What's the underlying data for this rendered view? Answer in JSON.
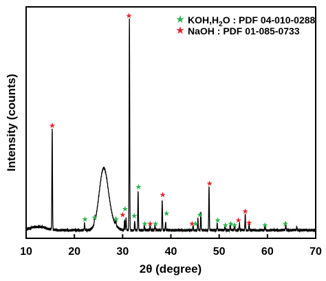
{
  "chart_data": {
    "type": "line",
    "xlabel": "2θ (degree)",
    "ylabel": "Intensity (counts)",
    "xlim": [
      10,
      70
    ],
    "ylim": [
      0,
      100
    ],
    "x_ticks": [
      "10",
      "20",
      "30",
      "40",
      "50",
      "60",
      "70"
    ],
    "y_ticks": [],
    "grid": false,
    "legend_position": "top-right",
    "legend": [
      {
        "marker_color": "#2bb24c",
        "label_parts": [
          "KOH,H",
          "2",
          "O : PDF 04-010-0288"
        ]
      },
      {
        "marker_color": "#e8202a",
        "label": "NaOH : PDF 01-085-0733"
      }
    ],
    "pattern": {
      "color": "#000000",
      "baseline": 3.5,
      "humps": [
        {
          "center": 12.5,
          "width": 1.6,
          "height": 1.5
        },
        {
          "center": 26.0,
          "width": 0.9,
          "height": 22.0
        },
        {
          "center": 26.8,
          "width": 1.2,
          "height": 6.0
        }
      ],
      "peaks": [
        {
          "x": 15.4,
          "intensity": 44.0
        },
        {
          "x": 22.1,
          "intensity": 3.0
        },
        {
          "x": 24.2,
          "intensity": 2.5
        },
        {
          "x": 28.6,
          "intensity": 3.0
        },
        {
          "x": 30.4,
          "intensity": 4.5
        },
        {
          "x": 30.7,
          "intensity": 5.0
        },
        {
          "x": 31.4,
          "intensity": 91.0
        },
        {
          "x": 32.5,
          "intensity": 4.0
        },
        {
          "x": 33.2,
          "intensity": 17.0
        },
        {
          "x": 34.5,
          "intensity": 2.0
        },
        {
          "x": 35.7,
          "intensity": 2.0
        },
        {
          "x": 36.7,
          "intensity": 2.5
        },
        {
          "x": 38.2,
          "intensity": 13.0
        },
        {
          "x": 38.9,
          "intensity": 3.5
        },
        {
          "x": 44.6,
          "intensity": 2.0
        },
        {
          "x": 45.6,
          "intensity": 5.0
        },
        {
          "x": 46.2,
          "intensity": 8.0
        },
        {
          "x": 47.9,
          "intensity": 19.0
        },
        {
          "x": 49.6,
          "intensity": 3.0
        },
        {
          "x": 51.2,
          "intensity": 2.0
        },
        {
          "x": 52.3,
          "intensity": 2.5
        },
        {
          "x": 53.2,
          "intensity": 2.5
        },
        {
          "x": 54.2,
          "intensity": 3.0
        },
        {
          "x": 55.4,
          "intensity": 7.0
        },
        {
          "x": 56.2,
          "intensity": 3.0
        },
        {
          "x": 59.5,
          "intensity": 2.0
        },
        {
          "x": 63.8,
          "intensity": 3.0
        },
        {
          "x": 66.1,
          "intensity": 1.5
        }
      ]
    },
    "star_markers": [
      {
        "phase": "NaOH",
        "color": "#e8202a",
        "x": 15.4,
        "y": 48.5
      },
      {
        "phase": "KOH,H2O",
        "color": "#2bb24c",
        "x": 22.2,
        "y": 8.0
      },
      {
        "phase": "KOH,H2O",
        "color": "#2bb24c",
        "x": 24.2,
        "y": 8.8
      },
      {
        "phase": "KOH,H2O",
        "color": "#2bb24c",
        "x": 28.6,
        "y": 8.0
      },
      {
        "phase": "NaOH",
        "color": "#e8202a",
        "x": 30.0,
        "y": 10.0
      },
      {
        "phase": "KOH,H2O",
        "color": "#2bb24c",
        "x": 30.5,
        "y": 12.5
      },
      {
        "phase": "NaOH",
        "color": "#e8202a",
        "x": 31.3,
        "y": 96.0
      },
      {
        "phase": "KOH,H2O",
        "color": "#2bb24c",
        "x": 32.4,
        "y": 9.5
      },
      {
        "phase": "KOH,H2O",
        "color": "#2bb24c",
        "x": 33.3,
        "y": 22.0
      },
      {
        "phase": "KOH,H2O",
        "color": "#2bb24c",
        "x": 34.6,
        "y": 6.0
      },
      {
        "phase": "NaOH",
        "color": "#e8202a",
        "x": 35.7,
        "y": 6.0
      },
      {
        "phase": "KOH,H2O",
        "color": "#2bb24c",
        "x": 36.8,
        "y": 6.0
      },
      {
        "phase": "NaOH",
        "color": "#e8202a",
        "x": 38.3,
        "y": 18.5
      },
      {
        "phase": "KOH,H2O",
        "color": "#2bb24c",
        "x": 39.1,
        "y": 10.5
      },
      {
        "phase": "NaOH",
        "color": "#e8202a",
        "x": 44.4,
        "y": 6.0
      },
      {
        "phase": "KOH,H2O",
        "color": "#2bb24c",
        "x": 45.1,
        "y": 6.0
      },
      {
        "phase": "KOH,H2O",
        "color": "#2bb24c",
        "x": 46.0,
        "y": 10.0
      },
      {
        "phase": "NaOH",
        "color": "#e8202a",
        "x": 48.0,
        "y": 23.5
      },
      {
        "phase": "KOH,H2O",
        "color": "#2bb24c",
        "x": 49.7,
        "y": 7.5
      },
      {
        "phase": "KOH,H2O",
        "color": "#2bb24c",
        "x": 51.3,
        "y": 5.5
      },
      {
        "phase": "KOH,H2O",
        "color": "#2bb24c",
        "x": 52.4,
        "y": 6.0
      },
      {
        "phase": "KOH,H2O",
        "color": "#2bb24c",
        "x": 53.2,
        "y": 5.5
      },
      {
        "phase": "NaOH",
        "color": "#e8202a",
        "x": 54.0,
        "y": 7.5
      },
      {
        "phase": "NaOH",
        "color": "#e8202a",
        "x": 55.4,
        "y": 11.5
      },
      {
        "phase": "NaOH",
        "color": "#e8202a",
        "x": 56.2,
        "y": 6.5
      },
      {
        "phase": "KOH,H2O",
        "color": "#2bb24c",
        "x": 59.5,
        "y": 5.5
      },
      {
        "phase": "KOH,H2O",
        "color": "#2bb24c",
        "x": 63.7,
        "y": 6.0
      }
    ]
  }
}
